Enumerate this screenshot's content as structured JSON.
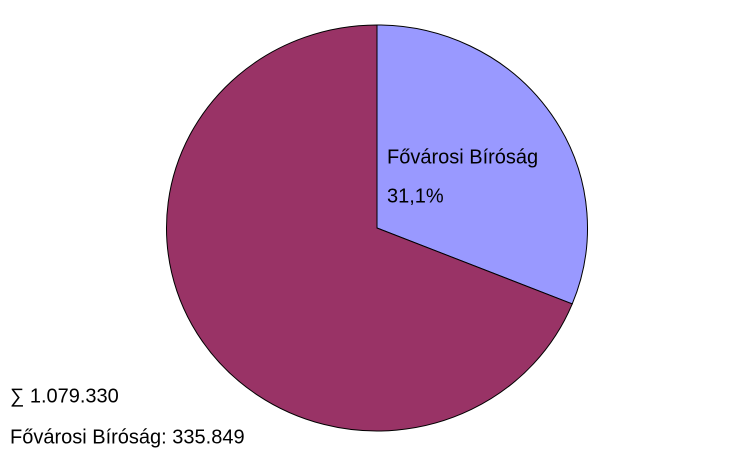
{
  "chart_data": {
    "type": "pie",
    "categories": [
      "Fővárosi Bíróság",
      null
    ],
    "values": [
      31.1,
      68.9
    ],
    "value_labels": [
      "31,1%",
      null
    ],
    "colors": [
      "#9999ff",
      "#993366"
    ],
    "annotations": [
      "∑  1.079.330",
      "Fővárosi Bíróság: 335.849"
    ]
  }
}
